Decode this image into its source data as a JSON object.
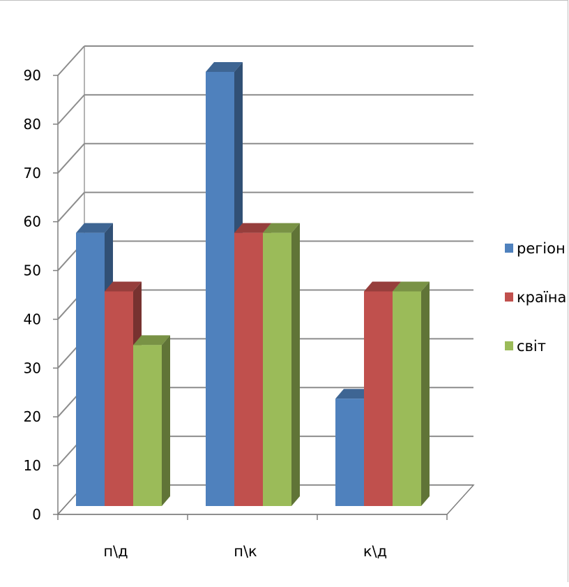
{
  "chart_data": {
    "type": "bar",
    "categories": [
      "п\\д",
      "п\\к",
      "к\\д"
    ],
    "series": [
      {
        "name": "регіон",
        "values": [
          56,
          89,
          22
        ],
        "color": "#4F81BD"
      },
      {
        "name": "країна",
        "values": [
          44,
          56,
          44
        ],
        "color": "#C0504D"
      },
      {
        "name": "світ",
        "values": [
          33,
          56,
          44
        ],
        "color": "#9BBB59"
      }
    ],
    "ylim": [
      0,
      90
    ],
    "yticks": [
      0,
      10,
      20,
      30,
      40,
      50,
      60,
      70,
      80,
      90
    ],
    "title": "",
    "xlabel": "",
    "ylabel": "",
    "grid": true,
    "legend_position": "right"
  }
}
